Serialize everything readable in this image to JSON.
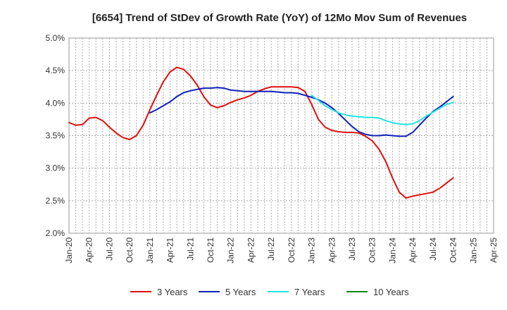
{
  "chart_data": {
    "type": "line",
    "title": "[6654]  Trend of StDev of Growth Rate (YoY) of 12Mo Mov Sum of Revenues",
    "xlabel": "",
    "ylabel": "",
    "ylim": [
      2.0,
      5.0
    ],
    "y_ticks": [
      2.0,
      2.5,
      3.0,
      3.5,
      4.0,
      4.5,
      5.0
    ],
    "y_tick_labels": [
      "2.0%",
      "2.5%",
      "3.0%",
      "3.5%",
      "4.0%",
      "4.5%",
      "5.0%"
    ],
    "x_tick_labels": [
      "Jan-20",
      "Apr-20",
      "Jul-20",
      "Oct-20",
      "Jan-21",
      "Apr-21",
      "Jul-21",
      "Oct-21",
      "Jan-22",
      "Apr-22",
      "Jul-22",
      "Oct-22",
      "Jan-23",
      "Apr-23",
      "Jul-23",
      "Oct-23",
      "Jan-24",
      "Apr-24",
      "Jul-24",
      "Oct-24",
      "Jan-25",
      "Apr-25"
    ],
    "grid": true,
    "legend_position": "bottom",
    "series": [
      {
        "name": "3 Years",
        "color": "#dd1111",
        "start_index": 0,
        "values": [
          3.7,
          3.66,
          3.67,
          3.77,
          3.78,
          3.73,
          3.63,
          3.54,
          3.47,
          3.44,
          3.5,
          3.66,
          3.9,
          4.12,
          4.33,
          4.48,
          4.55,
          4.52,
          4.42,
          4.28,
          4.1,
          3.97,
          3.93,
          3.96,
          4.01,
          4.05,
          4.08,
          4.12,
          4.18,
          4.22,
          4.25,
          4.25,
          4.25,
          4.25,
          4.24,
          4.18,
          3.98,
          3.75,
          3.63,
          3.58,
          3.56,
          3.55,
          3.55,
          3.54,
          3.49,
          3.42,
          3.29,
          3.1,
          2.85,
          2.63,
          2.54,
          2.57,
          2.59,
          2.61,
          2.63,
          2.69,
          2.77,
          2.85
        ]
      },
      {
        "name": "5 Years",
        "color": "#1122bb",
        "start_index": 12,
        "values": [
          3.85,
          3.9,
          3.96,
          4.02,
          4.1,
          4.16,
          4.19,
          4.21,
          4.23,
          4.23,
          4.24,
          4.23,
          4.2,
          4.19,
          4.18,
          4.18,
          4.18,
          4.18,
          4.18,
          4.17,
          4.16,
          4.16,
          4.15,
          4.12,
          4.09,
          4.05,
          4.0,
          3.93,
          3.84,
          3.74,
          3.64,
          3.56,
          3.52,
          3.5,
          3.5,
          3.51,
          3.5,
          3.49,
          3.49,
          3.55,
          3.66,
          3.77,
          3.87,
          3.94,
          4.02,
          4.1
        ]
      },
      {
        "name": "7 Years",
        "color": "#22e5e5",
        "start_index": 36,
        "values": [
          4.12,
          4.04,
          3.96,
          3.9,
          3.85,
          3.82,
          3.8,
          3.79,
          3.78,
          3.78,
          3.77,
          3.73,
          3.7,
          3.68,
          3.67,
          3.68,
          3.73,
          3.8,
          3.86,
          3.92,
          3.98,
          4.01
        ]
      },
      {
        "name": "10 Years",
        "color": "#118811",
        "start_index": 0,
        "values": []
      }
    ]
  }
}
